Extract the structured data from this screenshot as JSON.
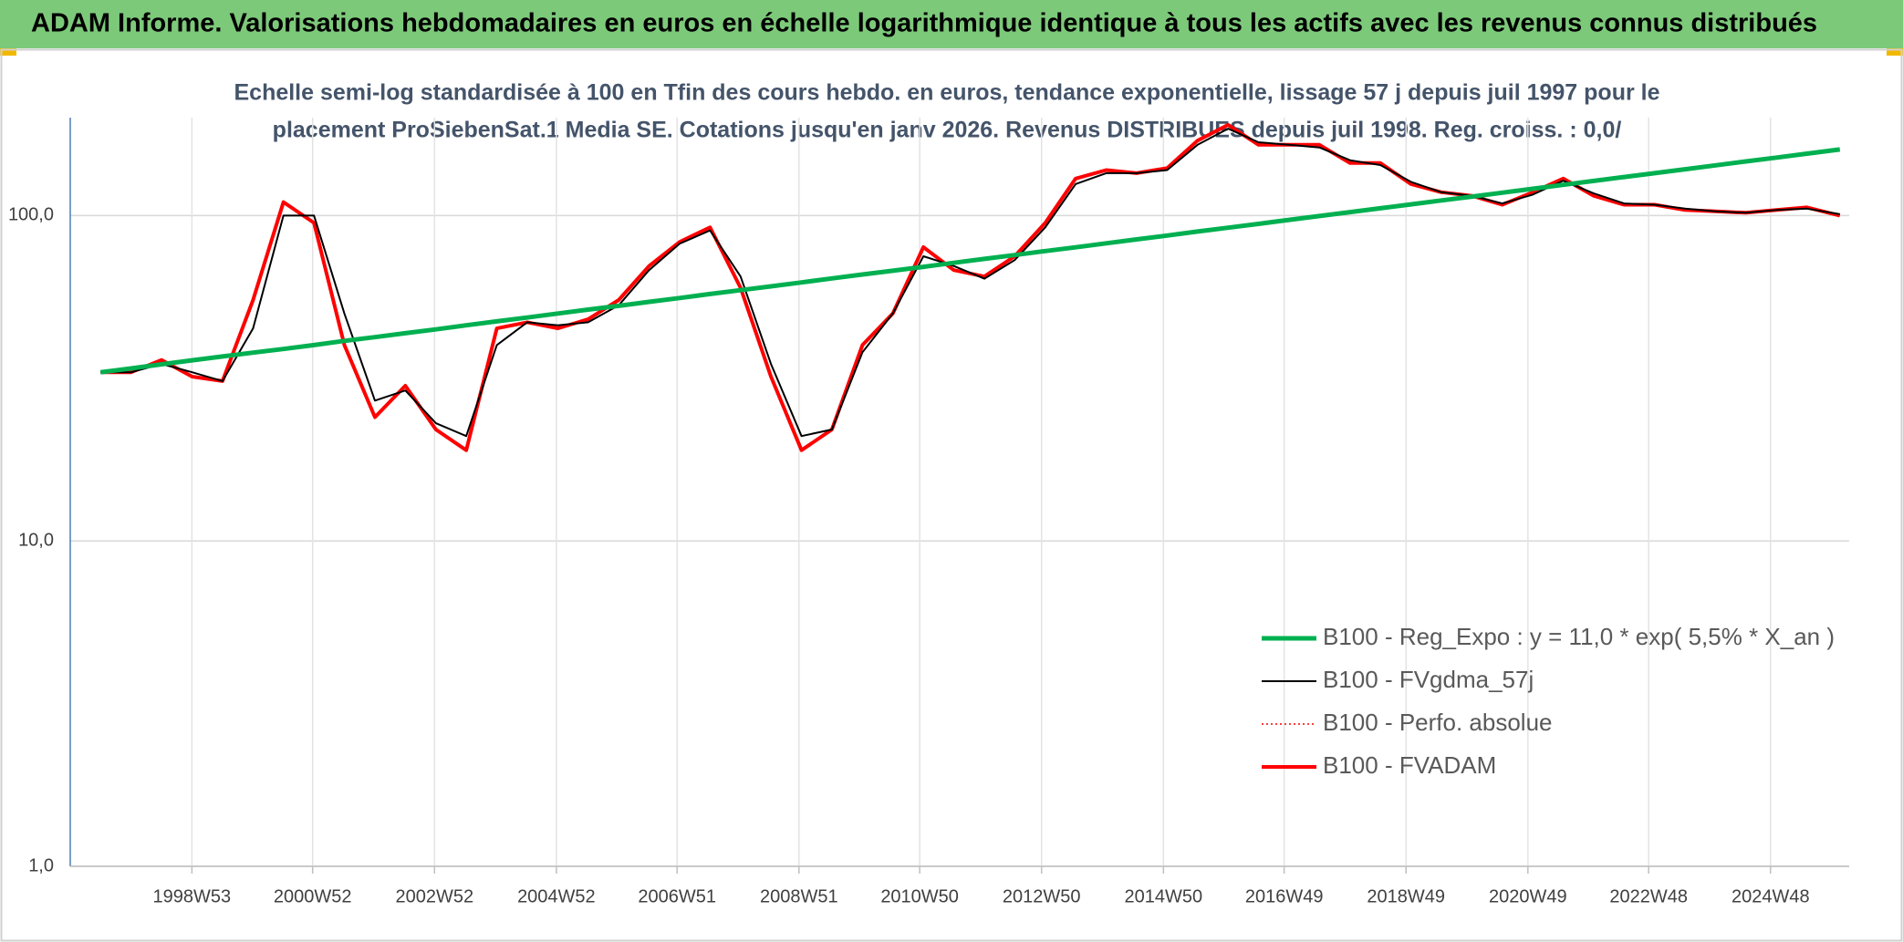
{
  "chart_data": {
    "type": "line",
    "title": "ADAM Informe. Valorisations hebdomadaires en euros en échelle logarithmique identique à tous les actifs avec les revenus connus distribués",
    "subtitle": [
      "Echelle semi-log standardisée à 100 en Tfin des cours hebdo. en euros, tendance exponentielle, lissage 57 j depuis juil 1997 pour le",
      "placement ProSiebenSat.1 Media SE. Cotations jusqu'en janv 2026. Revenus DISTRIBUES depuis juil 1998. Reg. croiss. : 0,0/"
    ],
    "x": [
      "1997W27",
      "1998W01",
      "1998W27",
      "1999W01",
      "1999W27",
      "2000W01",
      "2000W27",
      "2001W01",
      "2001W27",
      "2002W01",
      "2002W27",
      "2003W01",
      "2003W27",
      "2004W01",
      "2004W27",
      "2005W01",
      "2005W27",
      "2006W01",
      "2006W27",
      "2007W01",
      "2007W27",
      "2008W01",
      "2008W27",
      "2009W01",
      "2009W27",
      "2010W01",
      "2010W27",
      "2011W01",
      "2011W27",
      "2012W01",
      "2012W27",
      "2013W01",
      "2013W27",
      "2014W01",
      "2014W27",
      "2015W01",
      "2015W27",
      "2016W01",
      "2016W27",
      "2017W01",
      "2017W27",
      "2018W01",
      "2018W27",
      "2019W01",
      "2019W27",
      "2020W01",
      "2020W27",
      "2021W01",
      "2021W27",
      "2022W01",
      "2022W27",
      "2023W01",
      "2023W27",
      "2024W01",
      "2024W27",
      "2025W01",
      "2025W27",
      "2026W03"
    ],
    "xlim": [
      "1997W01",
      "2026W11"
    ],
    "xticks": [
      "1998W53",
      "2000W52",
      "2002W52",
      "2004W52",
      "2006W51",
      "2008W51",
      "2010W50",
      "2012W50",
      "2014W50",
      "2016W49",
      "2018W49",
      "2020W49",
      "2022W48",
      "2024W48"
    ],
    "ylim": [
      1,
      200
    ],
    "yticks": [
      {
        "value": 1,
        "label": "1,0"
      },
      {
        "value": 10,
        "label": "10,0"
      },
      {
        "value": 100,
        "label": "100,0"
      }
    ],
    "log_scale": true,
    "grid": true,
    "legend": "lower right",
    "series": [
      {
        "name": "B100 - Reg_Expo : y = 11,0 * exp( 5,5% *  X_an )",
        "color": "#00b050",
        "line_width": 5,
        "style": "solid",
        "values": [
          33.0,
          33.9,
          34.9,
          35.9,
          36.9,
          37.9,
          38.9,
          40.0,
          41.2,
          42.3,
          43.5,
          44.7,
          46.0,
          47.3,
          48.6,
          50.0,
          51.4,
          52.8,
          54.3,
          55.8,
          57.4,
          59.0,
          60.6,
          62.3,
          64.1,
          65.9,
          67.7,
          69.6,
          71.6,
          73.6,
          75.6,
          77.8,
          79.9,
          82.2,
          84.5,
          86.8,
          89.3,
          91.8,
          94.3,
          97.0,
          99.7,
          102.5,
          105.3,
          108.3,
          111.3,
          114.4,
          117.6,
          120.9,
          124.3,
          127.8,
          131.4,
          135.0,
          138.8,
          142.7,
          146.7,
          150.8,
          155.0,
          159.7
        ]
      },
      {
        "name": "B100 - FVgdma_57j",
        "color": "#000000",
        "line_width": 2,
        "style": "solid",
        "values": [
          33,
          33,
          35,
          33,
          31,
          45,
          100,
          100,
          50,
          27,
          29,
          23,
          21,
          40,
          47,
          46,
          47,
          53,
          68,
          82,
          90,
          65,
          35,
          21,
          22,
          38,
          50,
          75,
          70,
          64,
          73,
          92,
          125,
          135,
          135,
          138,
          165,
          185,
          168,
          165,
          162,
          148,
          143,
          127,
          118,
          115,
          109,
          116,
          128,
          117,
          109,
          108,
          105,
          103,
          102,
          104,
          105,
          101
        ]
      },
      {
        "name": "B100 - Perfo. absolue",
        "color": "#ff0000",
        "line_width": 1.5,
        "style": "dotted",
        "values": [
          33,
          33,
          36,
          32,
          31,
          55,
          110,
          95,
          40,
          24,
          30,
          22,
          19,
          45,
          47,
          45,
          48,
          55,
          70,
          83,
          92,
          60,
          32,
          19,
          22,
          40,
          50,
          80,
          68,
          65,
          75,
          95,
          130,
          138,
          135,
          140,
          170,
          190,
          165,
          165,
          165,
          145,
          145,
          125,
          118,
          115,
          108,
          118,
          130,
          115,
          108,
          108,
          104,
          103,
          102,
          104,
          106,
          100
        ]
      },
      {
        "name": "B100 - FVADAM",
        "color": "#ff0000",
        "line_width": 4,
        "style": "solid",
        "values": [
          33,
          33,
          36,
          32,
          31,
          55,
          110,
          95,
          40,
          24,
          30,
          22,
          19,
          45,
          47,
          45,
          48,
          55,
          70,
          83,
          92,
          60,
          32,
          19,
          22,
          40,
          50,
          80,
          68,
          65,
          75,
          95,
          130,
          138,
          135,
          140,
          170,
          190,
          165,
          165,
          165,
          145,
          145,
          125,
          118,
          115,
          108,
          118,
          130,
          115,
          108,
          108,
          104,
          103,
          102,
          104,
          106,
          100
        ]
      }
    ]
  }
}
